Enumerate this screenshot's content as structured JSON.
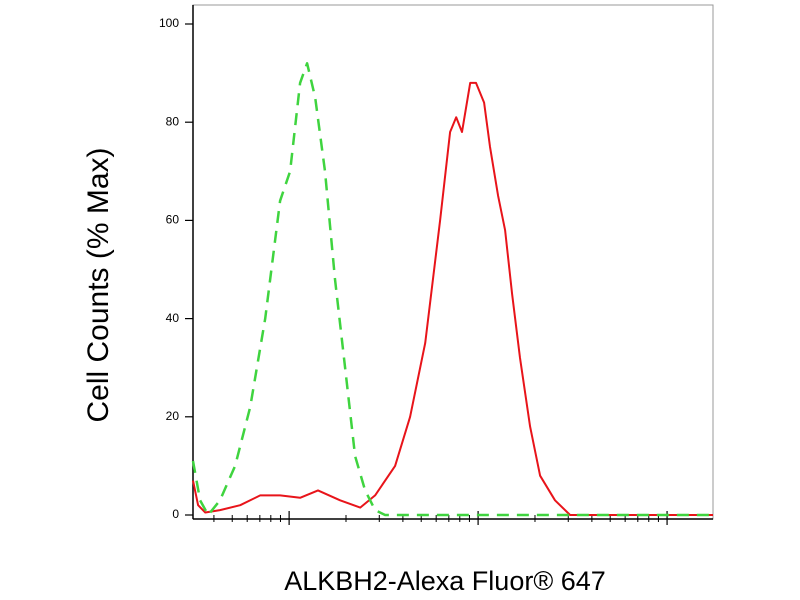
{
  "chart_data": {
    "type": "line",
    "x_label": "ALKBH2-Alexa Fluor® 647",
    "y_label": "Cell Counts (% Max)",
    "xscale": "log",
    "xlim": [
      310,
      175000
    ],
    "xticks": [
      1000,
      10000,
      100000
    ],
    "xminor_ticks": [
      400,
      500,
      600,
      700,
      800,
      900,
      2000,
      3000,
      4000,
      5000,
      6000,
      7000,
      8000,
      9000,
      20000,
      30000,
      40000,
      50000,
      60000,
      70000,
      80000,
      90000
    ],
    "show_xtick_labels": false,
    "ylim": [
      0,
      100
    ],
    "yticks": [
      0,
      20,
      40,
      60,
      80,
      100
    ],
    "series": [
      {
        "color": "#e8141a",
        "dashed": false,
        "x": [
          310,
          330,
          360,
          431,
          551,
          703,
          896,
          1143,
          1422,
          1862,
          2377,
          2851,
          3639,
          4365,
          5248,
          6295,
          7112,
          7656,
          8222,
          9078,
          9750,
          10765,
          11561,
          12764,
          13900,
          15136,
          16672,
          18836,
          21281,
          25527,
          30690,
          44260,
          175000
        ],
        "values": [
          7,
          2,
          0.5,
          1,
          2,
          4,
          4,
          3.5,
          5,
          3,
          1.5,
          4,
          10,
          20,
          35,
          60,
          78,
          81,
          78,
          88,
          88,
          84,
          75,
          65,
          58,
          45,
          32,
          18,
          8,
          3,
          0,
          0,
          0
        ]
      },
      {
        "color": "#3fd43f",
        "dashed": true,
        "x": [
          310,
          338,
          373,
          431,
          518,
          622,
          747,
          896,
          1012,
          1143,
          1245,
          1374,
          1549,
          1750,
          1977,
          2234,
          2523,
          2851,
          3221,
          175000
        ],
        "values": [
          11,
          3,
          0,
          3,
          10,
          22,
          40,
          64,
          70,
          88,
          92,
          85,
          70,
          48,
          30,
          12,
          5,
          1,
          0,
          0
        ]
      }
    ]
  }
}
